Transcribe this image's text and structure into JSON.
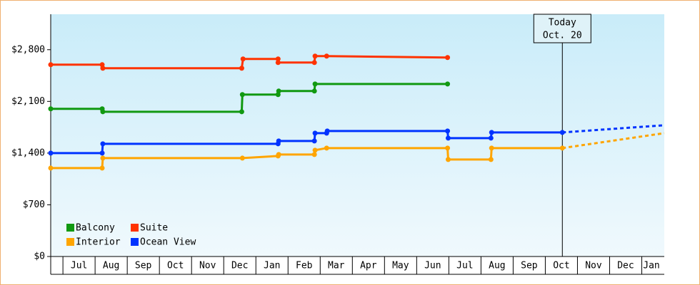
{
  "chart_data": {
    "type": "line",
    "categories": [
      "Jul",
      "Aug",
      "Sep",
      "Oct",
      "Nov",
      "Dec",
      "Jan",
      "Feb",
      "Mar",
      "Apr",
      "May",
      "Jun",
      "Jul",
      "Aug",
      "Sep",
      "Oct",
      "Nov",
      "Dec",
      "Jan"
    ],
    "xlim": [
      -0.38,
      18.7
    ],
    "ylim": [
      0,
      3280
    ],
    "yticks": [
      {
        "value": 0,
        "label": "$0"
      },
      {
        "value": 700,
        "label": "$700"
      },
      {
        "value": 1400,
        "label": "$1,400"
      },
      {
        "value": 2100,
        "label": "$2,100"
      },
      {
        "value": 2800,
        "label": "$2,800"
      }
    ],
    "series": [
      {
        "name": "Balcony",
        "color": "#119911",
        "x": [
          -0.38,
          1.22,
          1.24,
          5.56,
          5.58,
          6.69,
          6.71,
          7.82,
          7.84,
          11.96
        ],
        "values": [
          1999,
          1999,
          1960,
          1960,
          2192,
          2192,
          2240,
          2240,
          2336,
          2336
        ]
      },
      {
        "name": "Suite",
        "color": "#ff3300",
        "x": [
          -0.38,
          1.22,
          1.24,
          5.56,
          5.6,
          6.69,
          6.69,
          7.82,
          7.84,
          8.2,
          11.96
        ],
        "values": [
          2597,
          2597,
          2549,
          2549,
          2675,
          2675,
          2626,
          2626,
          2713,
          2713,
          2694
        ]
      },
      {
        "name": "Interior",
        "color": "#ffa500",
        "x": [
          -0.38,
          1.22,
          1.24,
          5.58,
          6.69,
          6.71,
          7.82,
          7.84,
          8.2,
          11.96,
          11.98,
          13.31,
          13.33,
          15.53
        ],
        "values": [
          1197,
          1197,
          1332,
          1332,
          1361,
          1381,
          1381,
          1439,
          1468,
          1468,
          1313,
          1313,
          1468,
          1468
        ],
        "forecast": {
          "x": [
            15.53,
            18.7
          ],
          "values": [
            1468,
            1670
          ]
        }
      },
      {
        "name": "Ocean View",
        "color": "#0033ff",
        "x": [
          -0.38,
          1.22,
          1.24,
          6.69,
          6.71,
          7.82,
          7.84,
          8.2,
          8.22,
          11.96,
          11.98,
          13.31,
          13.33,
          15.53
        ],
        "values": [
          1400,
          1400,
          1526,
          1526,
          1564,
          1564,
          1670,
          1670,
          1699,
          1699,
          1603,
          1603,
          1680,
          1680
        ],
        "forecast": {
          "x": [
            15.53,
            18.7
          ],
          "values": [
            1680,
            1777
          ]
        }
      }
    ],
    "annotation": {
      "text": [
        "Today",
        "Oct. 20"
      ],
      "x": 15.53
    }
  }
}
